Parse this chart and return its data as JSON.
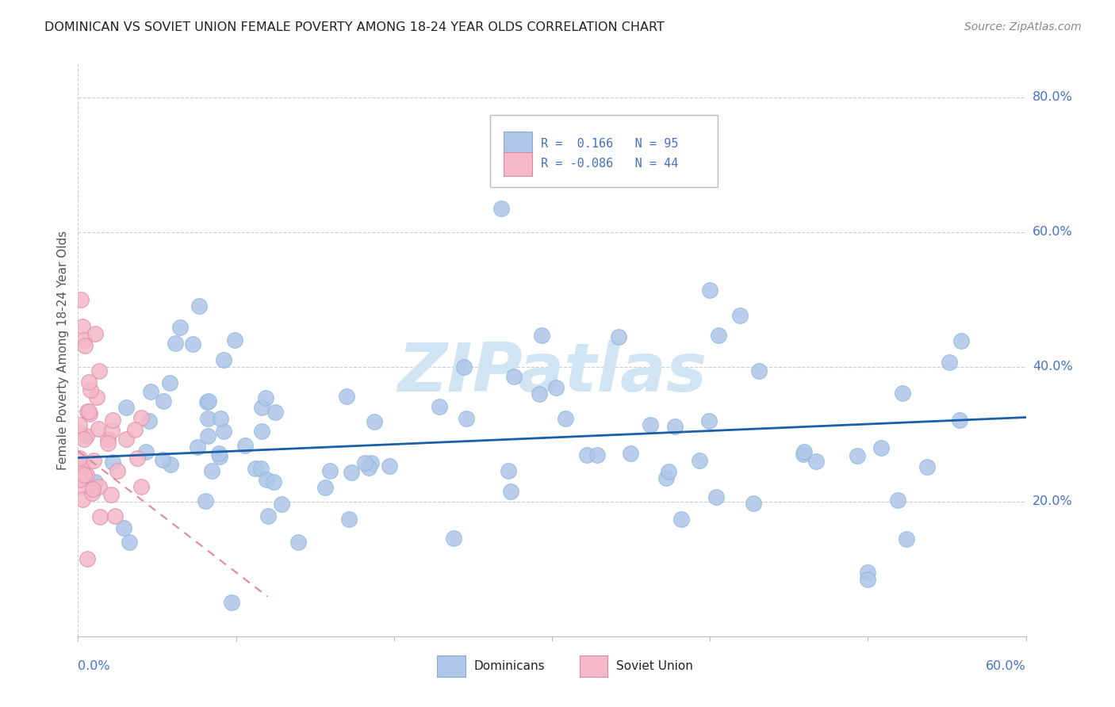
{
  "title": "DOMINICAN VS SOVIET UNION FEMALE POVERTY AMONG 18-24 YEAR OLDS CORRELATION CHART",
  "source": "Source: ZipAtlas.com",
  "ylabel": "Female Poverty Among 18-24 Year Olds",
  "xlim": [
    0.0,
    0.6
  ],
  "ylim": [
    0.0,
    0.85
  ],
  "dominican_color": "#aec6e8",
  "soviet_color": "#f4b8c8",
  "trend_blue": "#1a5fa8",
  "trend_pink": "#e08898",
  "watermark_color": "#d0e4f4",
  "background_color": "#ffffff",
  "grid_color": "#cccccc",
  "title_color": "#222222",
  "source_color": "#888888",
  "axis_label_color": "#4472c4",
  "ylabel_color": "#555555",
  "legend_text_color": "#4472c4",
  "dom_R": 0.166,
  "dom_N": 95,
  "sov_R": -0.086,
  "sov_N": 44
}
